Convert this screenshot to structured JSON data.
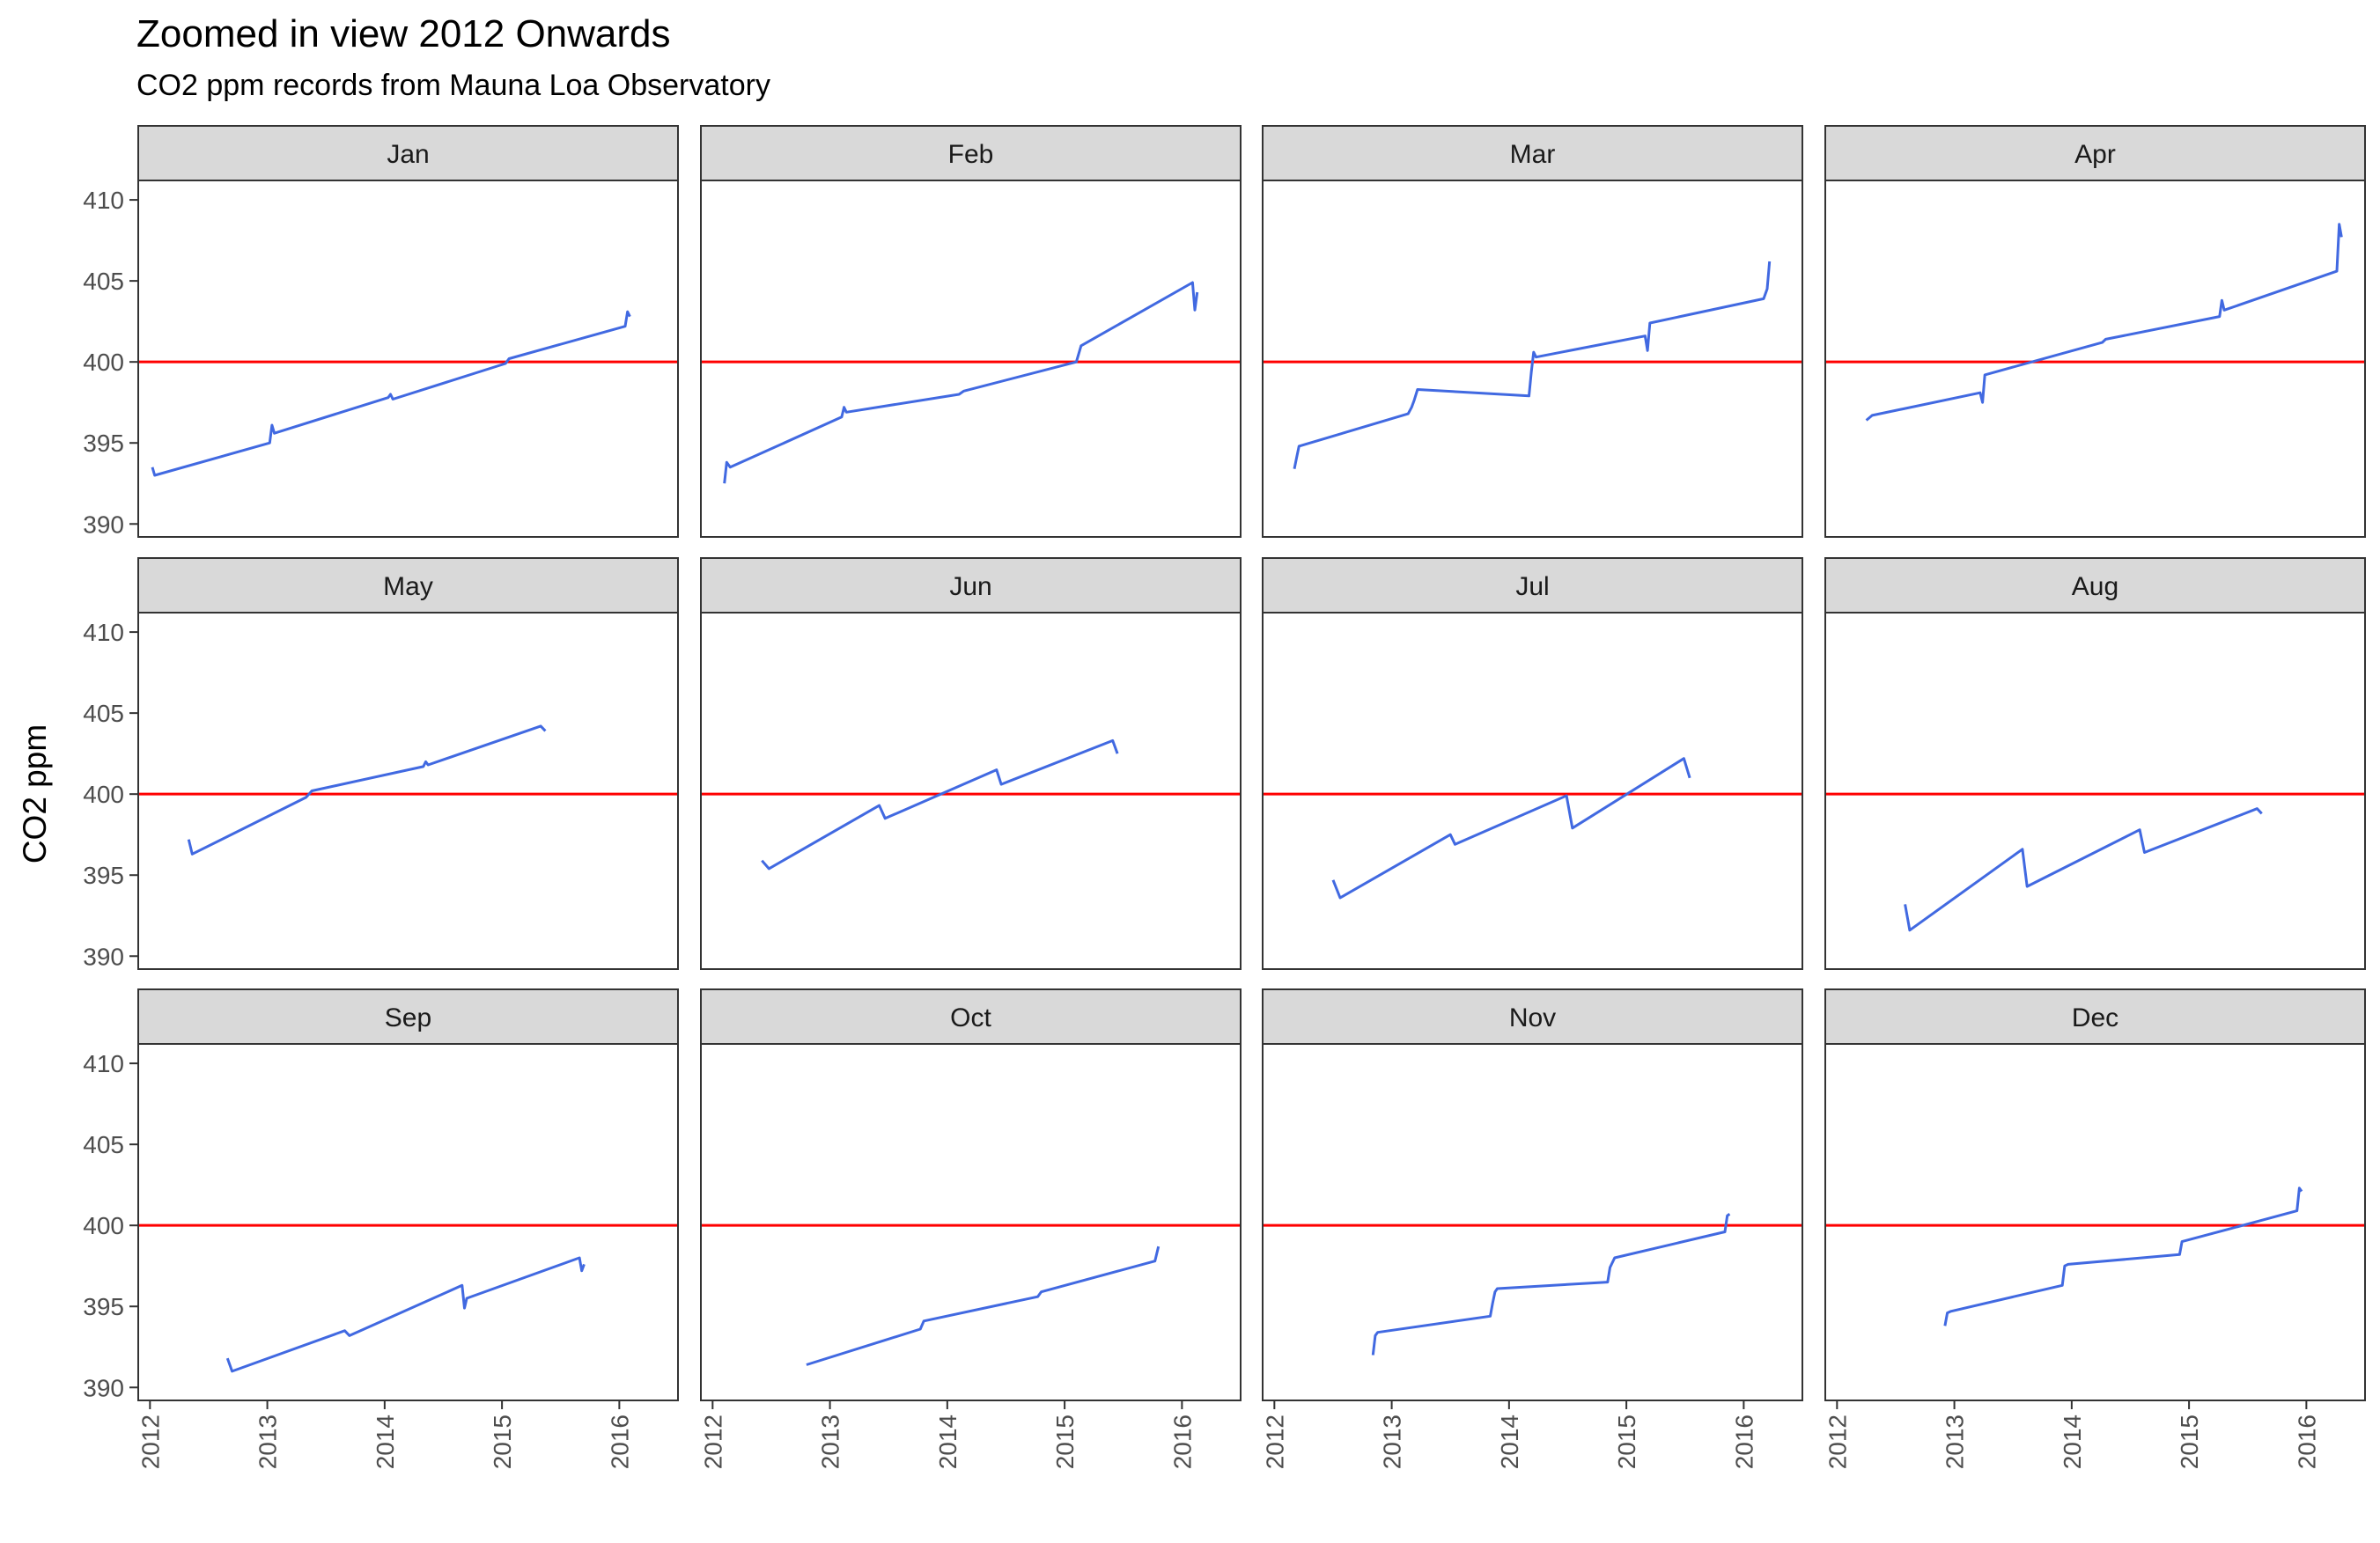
{
  "chart_data": {
    "type": "line",
    "title": "Zoomed in view 2012 Onwards",
    "subtitle": "CO2 ppm records from Mauna Loa Observatory",
    "xlabel": "",
    "ylabel": "CO2 ppm",
    "xlim": [
      2011.9,
      2016.5
    ],
    "ylim": [
      389.2,
      411.2
    ],
    "x_ticks": [
      "2012",
      "2013",
      "2014",
      "2015",
      "2016"
    ],
    "y_ticks": [
      "390",
      "395",
      "400",
      "405",
      "410"
    ],
    "reference_line": {
      "y": 400,
      "color": "#ff0000"
    },
    "line_color": "#4169e1",
    "grid": false,
    "facets": [
      {
        "label": "Jan",
        "points": [
          [
            2012.02,
            393.5
          ],
          [
            2012.04,
            393.0
          ],
          [
            2013.02,
            395.0
          ],
          [
            2013.04,
            396.1
          ],
          [
            2013.06,
            395.6
          ],
          [
            2014.03,
            397.8
          ],
          [
            2014.05,
            398.0
          ],
          [
            2014.07,
            397.7
          ],
          [
            2015.03,
            399.9
          ],
          [
            2015.06,
            400.2
          ],
          [
            2016.05,
            402.2
          ],
          [
            2016.07,
            403.1
          ],
          [
            2016.09,
            402.8
          ]
        ]
      },
      {
        "label": "Feb",
        "points": [
          [
            2012.1,
            392.5
          ],
          [
            2012.12,
            393.8
          ],
          [
            2012.15,
            393.5
          ],
          [
            2013.1,
            396.6
          ],
          [
            2013.12,
            397.2
          ],
          [
            2013.14,
            396.9
          ],
          [
            2014.1,
            398.0
          ],
          [
            2014.14,
            398.2
          ],
          [
            2015.1,
            400.0
          ],
          [
            2015.14,
            401.0
          ],
          [
            2016.09,
            404.9
          ],
          [
            2016.11,
            403.2
          ],
          [
            2016.13,
            404.3
          ]
        ]
      },
      {
        "label": "Mar",
        "points": [
          [
            2012.17,
            393.4
          ],
          [
            2012.19,
            394.1
          ],
          [
            2012.21,
            394.8
          ],
          [
            2013.14,
            396.8
          ],
          [
            2013.17,
            397.2
          ],
          [
            2013.19,
            397.6
          ],
          [
            2013.22,
            398.3
          ],
          [
            2014.17,
            397.9
          ],
          [
            2014.19,
            399.4
          ],
          [
            2014.21,
            400.6
          ],
          [
            2014.23,
            400.3
          ],
          [
            2015.16,
            401.6
          ],
          [
            2015.18,
            400.7
          ],
          [
            2015.2,
            402.4
          ],
          [
            2016.17,
            403.9
          ],
          [
            2016.2,
            404.5
          ],
          [
            2016.22,
            406.2
          ]
        ]
      },
      {
        "label": "Apr",
        "points": [
          [
            2012.25,
            396.4
          ],
          [
            2012.3,
            396.7
          ],
          [
            2013.22,
            398.1
          ],
          [
            2013.24,
            397.5
          ],
          [
            2013.26,
            399.2
          ],
          [
            2014.26,
            401.2
          ],
          [
            2014.29,
            401.4
          ],
          [
            2015.26,
            402.8
          ],
          [
            2015.28,
            403.8
          ],
          [
            2015.3,
            403.2
          ],
          [
            2016.26,
            405.6
          ],
          [
            2016.28,
            408.5
          ],
          [
            2016.3,
            407.7
          ]
        ]
      },
      {
        "label": "May",
        "points": [
          [
            2012.33,
            397.2
          ],
          [
            2012.36,
            396.3
          ],
          [
            2013.33,
            399.8
          ],
          [
            2013.38,
            400.2
          ],
          [
            2014.33,
            401.7
          ],
          [
            2014.35,
            402.0
          ],
          [
            2014.37,
            401.8
          ],
          [
            2015.33,
            404.2
          ],
          [
            2015.37,
            403.9
          ]
        ]
      },
      {
        "label": "Jun",
        "points": [
          [
            2012.42,
            395.9
          ],
          [
            2012.48,
            395.4
          ],
          [
            2013.42,
            399.3
          ],
          [
            2013.47,
            398.5
          ],
          [
            2014.42,
            401.5
          ],
          [
            2014.46,
            400.6
          ],
          [
            2015.41,
            403.3
          ],
          [
            2015.45,
            402.5
          ]
        ]
      },
      {
        "label": "Jul",
        "points": [
          [
            2012.5,
            394.7
          ],
          [
            2012.56,
            393.6
          ],
          [
            2013.5,
            397.5
          ],
          [
            2013.54,
            396.9
          ],
          [
            2014.49,
            399.9
          ],
          [
            2014.54,
            397.9
          ],
          [
            2015.49,
            402.2
          ],
          [
            2015.54,
            401.0
          ]
        ]
      },
      {
        "label": "Aug",
        "points": [
          [
            2012.58,
            393.2
          ],
          [
            2012.62,
            391.6
          ],
          [
            2013.58,
            396.6
          ],
          [
            2013.62,
            394.3
          ],
          [
            2014.58,
            397.8
          ],
          [
            2014.62,
            396.4
          ],
          [
            2015.58,
            399.1
          ],
          [
            2015.62,
            398.8
          ]
        ]
      },
      {
        "label": "Sep",
        "points": [
          [
            2012.66,
            391.8
          ],
          [
            2012.7,
            391.0
          ],
          [
            2013.66,
            393.5
          ],
          [
            2013.7,
            393.2
          ],
          [
            2014.66,
            396.3
          ],
          [
            2014.68,
            394.9
          ],
          [
            2014.7,
            395.5
          ],
          [
            2015.66,
            398.0
          ],
          [
            2015.68,
            397.2
          ],
          [
            2015.7,
            397.6
          ]
        ]
      },
      {
        "label": "Oct",
        "points": [
          [
            2012.8,
            391.4
          ],
          [
            2013.77,
            393.6
          ],
          [
            2013.8,
            394.1
          ],
          [
            2014.77,
            395.6
          ],
          [
            2014.8,
            395.9
          ],
          [
            2015.77,
            397.8
          ],
          [
            2015.8,
            398.7
          ]
        ]
      },
      {
        "label": "Nov",
        "points": [
          [
            2012.84,
            392.0
          ],
          [
            2012.86,
            393.2
          ],
          [
            2012.88,
            393.4
          ],
          [
            2013.84,
            394.4
          ],
          [
            2013.86,
            395.2
          ],
          [
            2013.88,
            395.9
          ],
          [
            2013.9,
            396.1
          ],
          [
            2014.84,
            396.5
          ],
          [
            2014.86,
            397.4
          ],
          [
            2014.9,
            398.0
          ],
          [
            2015.84,
            399.6
          ],
          [
            2015.86,
            400.6
          ],
          [
            2015.88,
            400.7
          ]
        ]
      },
      {
        "label": "Dec",
        "points": [
          [
            2012.92,
            393.8
          ],
          [
            2012.94,
            394.6
          ],
          [
            2012.97,
            394.7
          ],
          [
            2013.92,
            396.3
          ],
          [
            2013.94,
            397.5
          ],
          [
            2013.97,
            397.6
          ],
          [
            2014.92,
            398.2
          ],
          [
            2014.94,
            399.0
          ],
          [
            2015.92,
            400.9
          ],
          [
            2015.94,
            402.3
          ],
          [
            2015.96,
            402.1
          ]
        ]
      }
    ]
  }
}
